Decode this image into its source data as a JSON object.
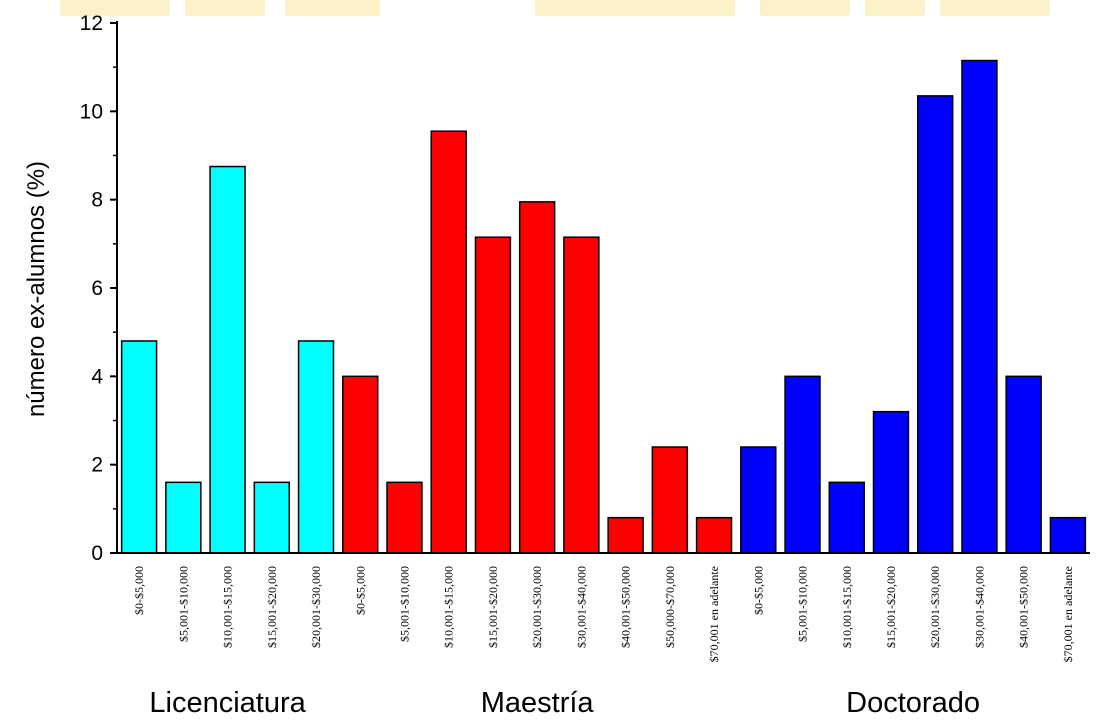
{
  "chart_data": {
    "type": "bar",
    "ylabel": "número ex-alumnos (%)",
    "xlabel": "",
    "ylim": [
      0,
      12
    ],
    "yticks": [
      0,
      2,
      4,
      6,
      8,
      10,
      12
    ],
    "grid": false,
    "legend": "none",
    "categories": [
      "$0-$5,000",
      "$5,001-$10,000",
      "$10,001-$15,000",
      "$15,001-$20,000",
      "$20,001-$30,000",
      "$0-$5,000",
      "$5,001-$10,000",
      "$10,001-$15,000",
      "$15,001-$20,000",
      "$20,001-$30,000",
      "$30,001-$40,000",
      "$40,001-$50,000",
      "$50,000-$70,000",
      "$70,001 en adelante",
      "$0-$5,000",
      "$5,001-$10,000",
      "$10,001-$15,000",
      "$15,001-$20,000",
      "$20,001-$30,000",
      "$30,001-$40,000",
      "$40,001-$50,000",
      "$70,001 en adelante"
    ],
    "groups": [
      {
        "label": "Licenciatura",
        "color": "#00ffff",
        "start": 0,
        "count": 5,
        "values": [
          4.8,
          1.6,
          8.75,
          1.6,
          4.8
        ]
      },
      {
        "label": "Maestría",
        "color": "#ff0000",
        "start": 5,
        "count": 9,
        "values": [
          4.0,
          1.6,
          9.55,
          7.15,
          7.95,
          7.15,
          0.8,
          2.4,
          0.8
        ]
      },
      {
        "label": "Doctorado",
        "color": "#0000ff",
        "start": 14,
        "count": 8,
        "values": [
          2.4,
          4.0,
          1.6,
          3.2,
          10.35,
          11.15,
          4.0,
          0.8
        ]
      }
    ]
  }
}
